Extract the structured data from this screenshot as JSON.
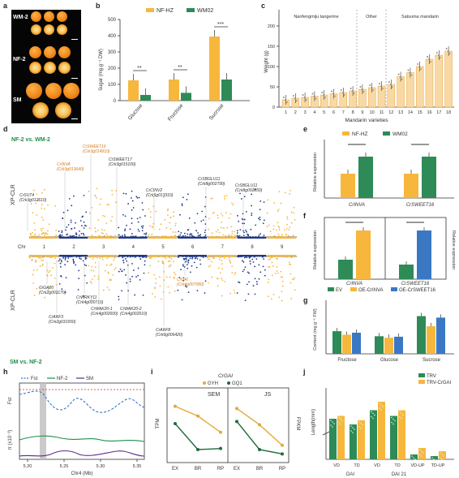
{
  "panels": {
    "a": {
      "letter": "a",
      "labels": [
        "WM-2",
        "NF-2",
        "SM"
      ]
    },
    "b": {
      "letter": "b",
      "legend": [
        "NF-HZ",
        "WM02"
      ],
      "ylabel": "Sugar (mg.g⁻¹ DW)",
      "yticks": [
        "0",
        "100",
        "200",
        "300",
        "400",
        "500"
      ],
      "categories": [
        "Glucose",
        "Fructose",
        "Sucrose"
      ],
      "sig": [
        "**",
        "**",
        "***"
      ]
    },
    "c": {
      "letter": "c",
      "ylabel": "Weight (g)",
      "xlabel": "Mandarin varieties",
      "groups": [
        "Nanfengmiju tangerine",
        "Other",
        "Satsuma mandarin"
      ],
      "yticks": [
        "0",
        "50",
        "100",
        "150",
        "200"
      ]
    },
    "d": {
      "letter": "d",
      "top_title": "NF-2 vs. WM-2",
      "bottom_title": "SM vs. NF-2",
      "ylabel": "XP-CLR",
      "chr_label": "Chr",
      "chromosomes": [
        "1",
        "2",
        "3",
        "4",
        "5",
        "6",
        "7",
        "8",
        "9"
      ],
      "top_genes": [
        "CrSWEET16",
        "Crk3g014910",
        "CrSWEET17",
        "Crk3g015100",
        "CrINVA",
        "Crk3g013640",
        "CrSUT4",
        "Crk3g012610",
        "CrCINV2",
        "Crk5g013310",
        "CrSBGLU11",
        "Crk8g002790",
        "CrSBGLU11",
        "Crk8g002850"
      ],
      "bottom_genes": [
        "CrGAI",
        "Crk4g007080",
        "CrGA20",
        "Crk2g003170",
        "CrARF3",
        "Crk2g031650",
        "CrWRKY11",
        "Crk4g000710",
        "CrWAK20-1",
        "Crk4g002600",
        "CrWAK20-2",
        "Crk4g002610",
        "CrARF8",
        "Crk6g006420"
      ]
    },
    "e": {
      "letter": "e",
      "legend": [
        "NF-HZ",
        "WM02"
      ],
      "ylabel": "Relative expression",
      "categories": [
        "CrINVA",
        "CrSWEET16"
      ]
    },
    "f": {
      "letter": "f",
      "legend": [
        "EV",
        "OE-CrINVA",
        "OE-CrSWEET16"
      ],
      "ylabel": "Relative expression",
      "ylabel2": "Relative expression",
      "categories": [
        "CrINVA",
        "CrSWEET16"
      ]
    },
    "g": {
      "letter": "g",
      "ylabel": "Content (mg.g⁻¹ FW)",
      "categories": [
        "Fructose",
        "Glucose",
        "Sucrose"
      ]
    },
    "h": {
      "letter": "h",
      "legend": [
        "Fst",
        "NF-2",
        "SM"
      ],
      "ylabel_top": "Fst",
      "ylabel_bottom": "π (x10⁻³)",
      "xlabel": "Chr4 (Mb)",
      "xticks": [
        "5.20",
        "5.25",
        "5.30",
        "5.35"
      ]
    },
    "i": {
      "letter": "i",
      "title": "CrGAI",
      "legend": [
        "GYH",
        "GQ1"
      ],
      "ylabel": "TPM",
      "ylabel2": "FPKM",
      "sub": [
        "SEM",
        "JS"
      ],
      "xticks": [
        "EX",
        "BR",
        "RP",
        "EX",
        "BR",
        "RP"
      ]
    },
    "j": {
      "letter": "j",
      "legend": [
        "TRV",
        "TRV-CrGAI"
      ],
      "ylabel": "Length(mm)",
      "xticks": [
        "VD",
        "TD",
        "VD",
        "TD",
        "VD-UP",
        "TD-UP"
      ],
      "xgroups": [
        "DAI",
        "DAI 21"
      ]
    }
  },
  "chart_data": [
    {
      "type": "bar",
      "panel": "b",
      "categories": [
        "Glucose",
        "Fructose",
        "Sucrose"
      ],
      "series": [
        {
          "name": "NF-HZ",
          "values": [
            125,
            130,
            395
          ]
        },
        {
          "name": "WM02",
          "values": [
            35,
            48,
            130
          ]
        }
      ],
      "ylim": [
        0,
        500
      ]
    },
    {
      "type": "bar",
      "panel": "c",
      "categories": [
        "1",
        "2",
        "3",
        "4",
        "5",
        "6",
        "7",
        "8",
        "9",
        "10",
        "11",
        "12",
        "13",
        "14",
        "15",
        "16",
        "17",
        "18"
      ],
      "values": [
        18,
        22,
        24,
        27,
        30,
        33,
        36,
        40,
        44,
        48,
        52,
        56,
        75,
        85,
        100,
        118,
        128,
        138
      ],
      "ylim": [
        0,
        200
      ]
    },
    {
      "type": "bar",
      "panel": "e",
      "categories": [
        "CrINVA",
        "CrSWEET16"
      ],
      "series": [
        {
          "name": "NF-HZ",
          "values": [
            1.0,
            1.0
          ]
        },
        {
          "name": "WM02",
          "values": [
            1.7,
            1.7
          ]
        }
      ]
    },
    {
      "type": "bar",
      "panel": "f",
      "categories": [
        "CrINVA",
        "CrSWEET16"
      ],
      "series": [
        {
          "name": "EV",
          "values": [
            0.4,
            0.3
          ]
        },
        {
          "name": "OE",
          "values": [
            1.0,
            1.0
          ]
        }
      ]
    },
    {
      "type": "bar",
      "panel": "g",
      "categories": [
        "Fructose",
        "Glucose",
        "Sucrose"
      ],
      "series": [
        {
          "name": "EV",
          "values": [
            45,
            35,
            75
          ]
        },
        {
          "name": "OE-CrINVA",
          "values": [
            38,
            32,
            55
          ]
        },
        {
          "name": "OE-CrSWEET16",
          "values": [
            42,
            34,
            72
          ]
        }
      ],
      "ylim": [
        0,
        100
      ]
    },
    {
      "type": "line",
      "panel": "i",
      "categories": [
        "EX",
        "BR",
        "RP"
      ],
      "series": [
        {
          "name": "GYH SEM",
          "values": [
            52,
            43,
            28
          ]
        },
        {
          "name": "GQ1 SEM",
          "values": [
            36,
            12,
            13
          ]
        },
        {
          "name": "GYH JS",
          "values": [
            50,
            35,
            16
          ]
        },
        {
          "name": "GQ1 JS",
          "values": [
            38,
            12,
            8
          ]
        }
      ]
    },
    {
      "type": "bar",
      "panel": "j",
      "categories": [
        "VD",
        "TD",
        "VD",
        "TD",
        "VD-UP",
        "TD-UP"
      ],
      "series": [
        {
          "name": "TRV",
          "values": [
            8.4,
            8.0,
            9.0,
            8.6,
            0.3,
            0.2
          ]
        },
        {
          "name": "TRV-CrGAI",
          "values": [
            8.6,
            8.3,
            9.6,
            9.0,
            0.7,
            0.5
          ]
        }
      ]
    }
  ]
}
